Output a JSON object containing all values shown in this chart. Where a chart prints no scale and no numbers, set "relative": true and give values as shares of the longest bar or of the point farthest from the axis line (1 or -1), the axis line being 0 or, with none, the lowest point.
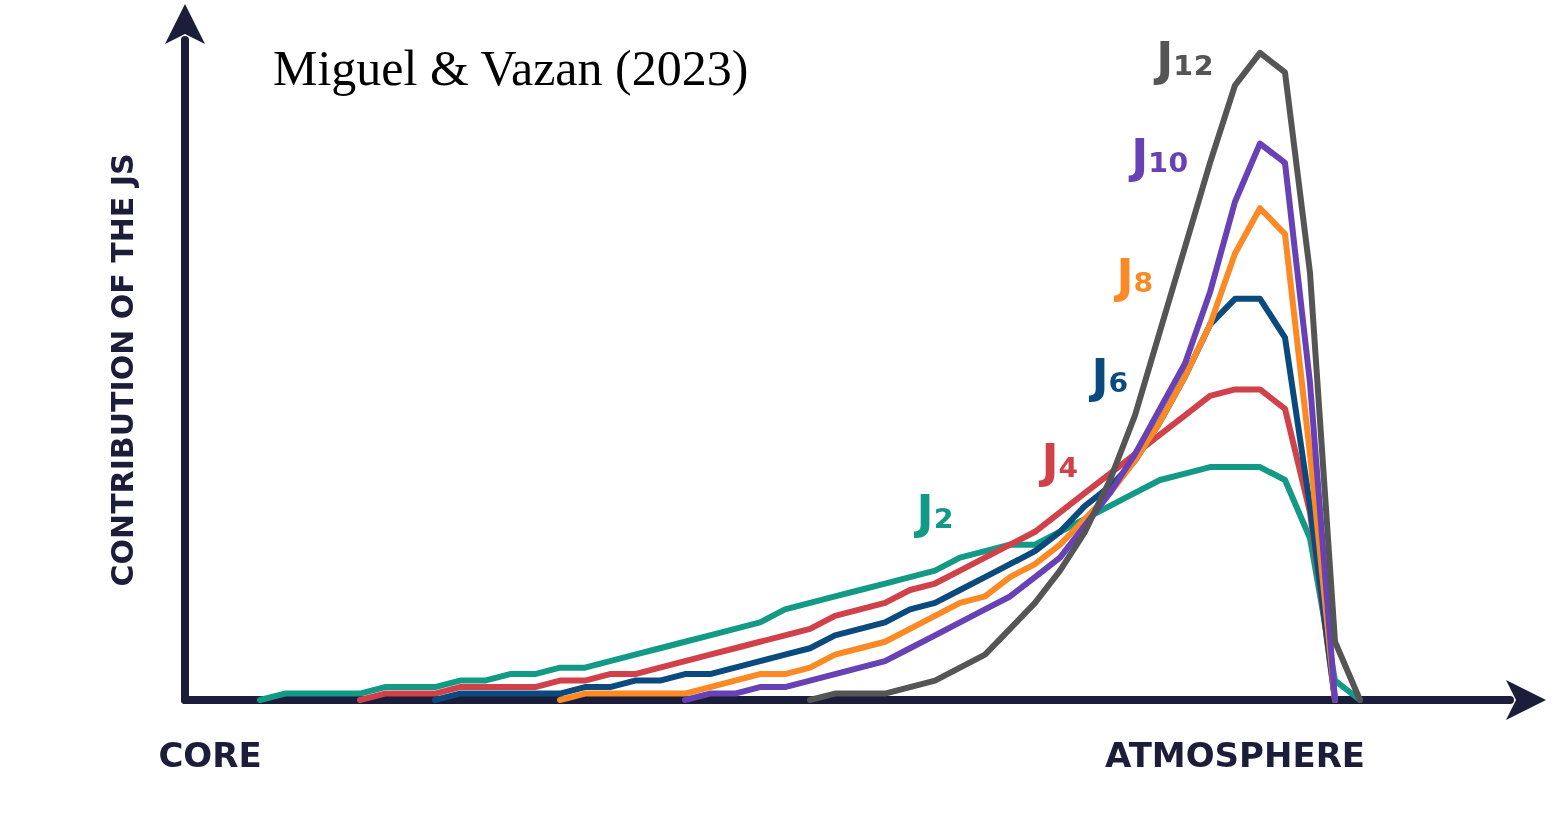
{
  "chart_data": {
    "type": "line",
    "relative": true,
    "title": "Miguel & Vazan (2023)",
    "ylabel": "CONTRIBUTION OF THE JS",
    "legend": false,
    "marker": "none",
    "line_style": "solid",
    "categories": [
      null,
      "CORE",
      null,
      null,
      null,
      null,
      null,
      null,
      null,
      null,
      null,
      null,
      null,
      null,
      null,
      null,
      null,
      null,
      null,
      null,
      null,
      null,
      null,
      null,
      null,
      null,
      null,
      null,
      null,
      null,
      null,
      null,
      null,
      null,
      null,
      null,
      null,
      null,
      null,
      null,
      null,
      null,
      "ATMOSPHERE",
      null,
      null,
      null,
      null,
      null,
      null,
      null,
      null,
      null,
      null,
      null
    ],
    "series": [
      {
        "name": "J₂",
        "color": "#139a86",
        "values": [
          null,
          null,
          null,
          0,
          0.01,
          0.01,
          0.01,
          0.01,
          0.02,
          0.02,
          0.02,
          0.03,
          0.03,
          0.04,
          0.04,
          0.05,
          0.05,
          0.06,
          0.07,
          0.08,
          0.09,
          0.1,
          0.11,
          0.12,
          0.14,
          0.15,
          0.16,
          0.17,
          0.18,
          0.19,
          0.2,
          0.22,
          0.23,
          0.24,
          0.24,
          0.26,
          0.28,
          0.3,
          0.32,
          0.34,
          0.35,
          0.36,
          0.36,
          0.36,
          0.34,
          0.25,
          0.03,
          0,
          null,
          null,
          null,
          null,
          null,
          null
        ]
      },
      {
        "name": "J₄",
        "color": "#d0414a",
        "values": [
          null,
          null,
          null,
          null,
          null,
          null,
          null,
          0,
          0.01,
          0.01,
          0.01,
          0.02,
          0.02,
          0.02,
          0.02,
          0.03,
          0.03,
          0.04,
          0.04,
          0.05,
          0.06,
          0.07,
          0.08,
          0.09,
          0.1,
          0.11,
          0.13,
          0.14,
          0.15,
          0.17,
          0.18,
          0.2,
          0.22,
          0.24,
          0.26,
          0.29,
          0.32,
          0.35,
          0.38,
          0.41,
          0.44,
          0.47,
          0.48,
          0.48,
          0.45,
          0.29,
          0,
          null,
          null,
          null,
          null,
          null,
          null,
          null
        ]
      },
      {
        "name": "J₆",
        "color": "#0b4a7e",
        "values": [
          null,
          null,
          null,
          null,
          null,
          null,
          null,
          null,
          null,
          null,
          0,
          0.01,
          0.01,
          0.01,
          0.01,
          0.01,
          0.02,
          0.02,
          0.03,
          0.03,
          0.04,
          0.04,
          0.05,
          0.06,
          0.07,
          0.08,
          0.1,
          0.11,
          0.12,
          0.14,
          0.15,
          0.17,
          0.19,
          0.21,
          0.23,
          0.26,
          0.3,
          0.33,
          0.37,
          0.43,
          0.5,
          0.58,
          0.62,
          0.62,
          0.56,
          0.3,
          0,
          null,
          null,
          null,
          null,
          null,
          null,
          null
        ]
      },
      {
        "name": "J₈",
        "color": "#fb8a25",
        "values": [
          null,
          null,
          null,
          null,
          null,
          null,
          null,
          null,
          null,
          null,
          null,
          null,
          null,
          null,
          null,
          0,
          0.01,
          0.01,
          0.01,
          0.01,
          0.01,
          0.02,
          0.03,
          0.04,
          0.04,
          0.05,
          0.07,
          0.08,
          0.09,
          0.11,
          0.13,
          0.15,
          0.16,
          0.19,
          0.21,
          0.24,
          0.28,
          0.32,
          0.37,
          0.43,
          0.5,
          0.58,
          0.69,
          0.76,
          0.72,
          0.38,
          0,
          null,
          null,
          null,
          null,
          null,
          null,
          null
        ]
      },
      {
        "name": "J₁₀",
        "color": "#6741b5",
        "values": [
          null,
          null,
          null,
          null,
          null,
          null,
          null,
          null,
          null,
          null,
          null,
          null,
          null,
          null,
          null,
          null,
          null,
          null,
          null,
          null,
          0,
          0.01,
          0.01,
          0.02,
          0.02,
          0.03,
          0.04,
          0.05,
          0.06,
          0.08,
          0.1,
          0.12,
          0.14,
          0.16,
          0.19,
          0.22,
          0.27,
          0.32,
          0.38,
          0.45,
          0.52,
          0.63,
          0.77,
          0.86,
          0.83,
          0.49,
          0,
          null,
          null,
          null,
          null,
          null,
          null,
          null
        ]
      },
      {
        "name": "J₁₂",
        "color": "#555555",
        "values": [
          null,
          null,
          null,
          null,
          null,
          null,
          null,
          null,
          null,
          null,
          null,
          null,
          null,
          null,
          null,
          null,
          null,
          null,
          null,
          null,
          null,
          null,
          null,
          null,
          null,
          0,
          0.01,
          0.01,
          0.01,
          0.02,
          0.03,
          0.05,
          0.07,
          0.11,
          0.15,
          0.2,
          0.26,
          0.34,
          0.44,
          0.57,
          0.7,
          0.83,
          0.95,
          1,
          0.97,
          0.66,
          0.09,
          0,
          null,
          null,
          null,
          null,
          null,
          null
        ]
      }
    ]
  }
}
